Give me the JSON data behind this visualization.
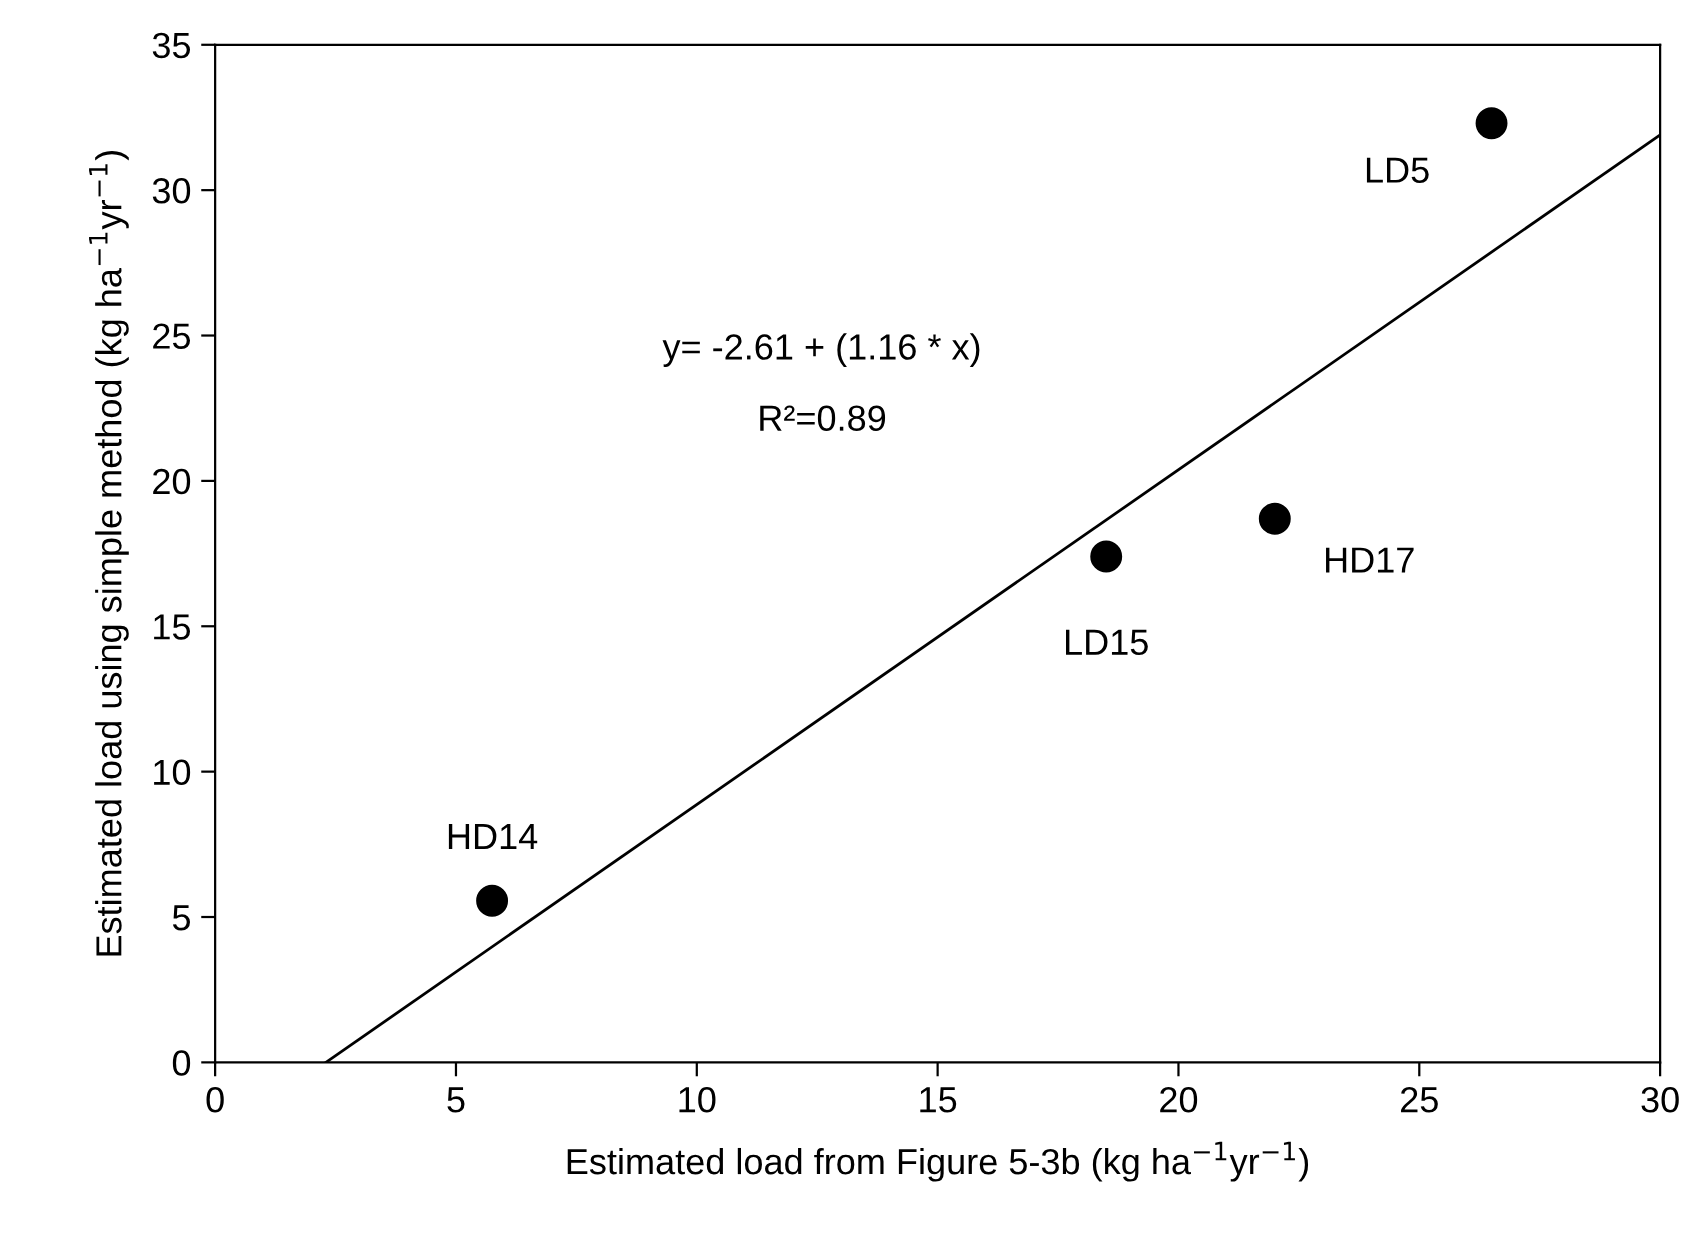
{
  "chart_data": {
    "type": "scatter",
    "xlabel": "Estimated load from Figure 5-3b (kg ha$^{−1}$yr$^{−1}$)",
    "ylabel": "Estimated load using simple method (kg ha$^{−1}$yr$^{−1}$)",
    "xlim": [
      0,
      30
    ],
    "ylim": [
      0,
      35
    ],
    "xticks": [
      0,
      5,
      10,
      15,
      20,
      25,
      30
    ],
    "yticks": [
      0,
      5,
      10,
      15,
      20,
      25,
      30,
      35
    ],
    "grid": false,
    "marker": "circle",
    "series": [
      {
        "color": "#000000",
        "x": [
          5.75,
          18.5,
          22.0,
          26.5
        ],
        "values": [
          5.56,
          17.4,
          18.7,
          32.3
        ]
      },
      {
        "type": "line",
        "color": "#000000",
        "x": [
          2.3,
          30
        ],
        "values": [
          0,
          31.9
        ],
        "line_style": "solid",
        "marker": "none"
      }
    ],
    "annotations": [
      "y= -2.61 + (1.16 * x)",
      "R²=0.89",
      {
        "text": "HD14",
        "x": 5.75,
        "y": 5.56
      },
      {
        "text": "LD15",
        "x": 18.5,
        "y": 17.4
      },
      {
        "text": "HD17",
        "x": 22.0,
        "y": 18.7
      },
      {
        "text": "LD5",
        "x": 26.5,
        "y": 32.3
      }
    ]
  }
}
